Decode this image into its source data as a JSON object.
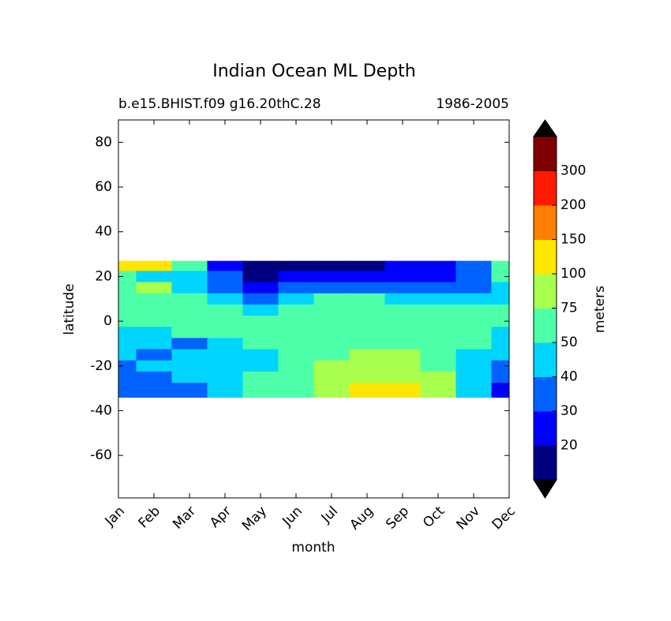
{
  "chart_data": {
    "type": "contourf",
    "title": "Indian Ocean ML Depth",
    "subtitle_left": "b.e15.BHIST.f09 g16.20thC.28",
    "subtitle_right": "1986-2005",
    "x_label": "month",
    "y_label": "latitude",
    "categories": [
      "Jan",
      "Feb",
      "Mar",
      "Apr",
      "May",
      "Jun",
      "Jul",
      "Aug",
      "Sep",
      "Oct",
      "Nov",
      "Dec"
    ],
    "ylim": [
      -79,
      90
    ],
    "yticks": [
      80,
      60,
      40,
      20,
      0,
      -20,
      -40,
      -60
    ],
    "lat_bins": [
      27,
      22.5,
      17.5,
      12.5,
      7.5,
      2.5,
      -2.5,
      -7.5,
      -12.5,
      -17.5,
      -22.5,
      -27.5,
      -34
    ],
    "rows": [
      [
        110,
        110,
        60,
        25,
        15,
        18,
        18,
        18,
        22,
        25,
        30,
        55
      ],
      [
        60,
        45,
        40,
        30,
        18,
        22,
        25,
        25,
        28,
        25,
        35,
        55
      ],
      [
        60,
        80,
        45,
        35,
        25,
        30,
        35,
        35,
        35,
        35,
        30,
        45
      ],
      [
        60,
        55,
        55,
        45,
        35,
        45,
        55,
        55,
        45,
        45,
        45,
        45
      ],
      [
        60,
        60,
        60,
        55,
        45,
        55,
        60,
        60,
        55,
        55,
        55,
        55
      ],
      [
        60,
        60,
        60,
        60,
        60,
        60,
        60,
        60,
        60,
        60,
        60,
        55
      ],
      [
        45,
        45,
        55,
        55,
        55,
        55,
        55,
        55,
        55,
        55,
        55,
        45
      ],
      [
        45,
        45,
        35,
        45,
        55,
        55,
        55,
        60,
        60,
        55,
        55,
        45
      ],
      [
        45,
        35,
        45,
        45,
        45,
        55,
        60,
        80,
        80,
        60,
        45,
        45
      ],
      [
        35,
        45,
        45,
        45,
        45,
        55,
        80,
        85,
        80,
        70,
        45,
        35
      ],
      [
        35,
        35,
        45,
        45,
        55,
        55,
        80,
        90,
        85,
        80,
        45,
        35
      ],
      [
        35,
        35,
        35,
        45,
        55,
        55,
        80,
        110,
        110,
        80,
        45,
        25
      ]
    ],
    "colorbar_label": "meters",
    "colorbar_ticks": [
      20,
      30,
      40,
      50,
      75,
      100,
      150,
      200,
      300
    ],
    "colors": [
      "#00007f",
      "#0000ff",
      "#0063ff",
      "#00d5ff",
      "#4dffa9",
      "#a9ff4d",
      "#ffe600",
      "#ff7f00",
      "#ff1a00",
      "#7f0000"
    ],
    "extend_color": "#000000"
  }
}
